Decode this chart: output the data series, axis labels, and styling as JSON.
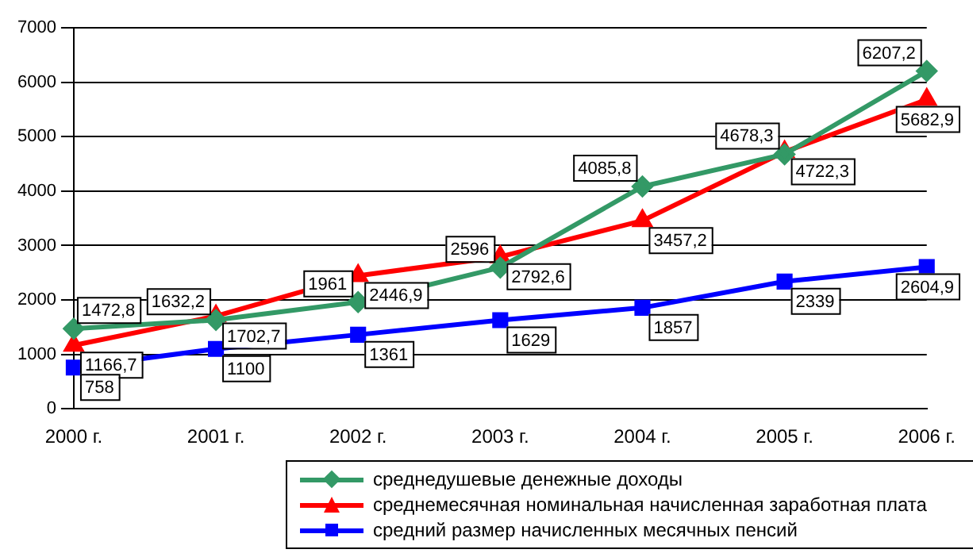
{
  "chart_data": {
    "type": "line",
    "categories": [
      "2000 г.",
      "2001 г.",
      "2002 г.",
      "2003 г.",
      "2004 г.",
      "2005 г.",
      "2006 г."
    ],
    "ylim": [
      0,
      7000
    ],
    "yticks": [
      0,
      1000,
      2000,
      3000,
      4000,
      5000,
      6000,
      7000
    ],
    "grid": "y",
    "legend": "bottom",
    "series": [
      {
        "name": "среднедушевые денежные доходы",
        "color": "#339966",
        "marker": "diamond",
        "values": [
          1472.8,
          1632.2,
          1961,
          2596,
          4085.8,
          4678.3,
          6207.2
        ],
        "value_labels": [
          "1472,8",
          "1632,2",
          "1961",
          "2596",
          "4085,8",
          "4678,3",
          "6207,2"
        ]
      },
      {
        "name": "среднемесячная номинальная начисленная заработная плата",
        "color": "#ff0000",
        "marker": "triangle",
        "values": [
          1166.7,
          1702.7,
          2446.9,
          2792.6,
          3457.2,
          4722.3,
          5682.9
        ],
        "value_labels": [
          "1166,7",
          "1702,7",
          "2446,9",
          "2792,6",
          "3457,2",
          "4722,3",
          "5682,9"
        ]
      },
      {
        "name": "средний размер начисленных месячных пенсий",
        "color": "#0000ff",
        "marker": "square",
        "values": [
          758,
          1100,
          1361,
          1629,
          1857,
          2339,
          2604.9
        ],
        "value_labels": [
          "758",
          "1100",
          "1361",
          "1629",
          "1857",
          "2339",
          "2604,9"
        ]
      }
    ]
  }
}
